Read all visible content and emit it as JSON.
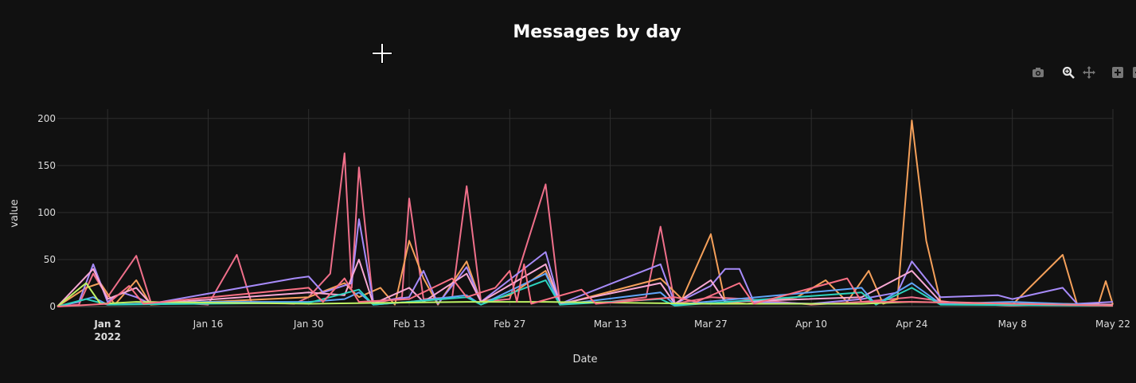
{
  "chart_data": {
    "type": "line",
    "title": "Messages by day",
    "xlabel": "Date",
    "ylabel": "value",
    "ylim": [
      0,
      200
    ],
    "y_ticks": [
      0,
      50,
      100,
      150,
      200
    ],
    "x_range": [
      "2021-12-26",
      "2022-05-22"
    ],
    "x_ticks": [
      {
        "date": "2022-01-02",
        "label": "Jan 2",
        "sublabel": "2022"
      },
      {
        "date": "2022-01-16",
        "label": "Jan 16"
      },
      {
        "date": "2022-01-30",
        "label": "Jan 30"
      },
      {
        "date": "2022-02-13",
        "label": "Feb 13"
      },
      {
        "date": "2022-02-27",
        "label": "Feb 27"
      },
      {
        "date": "2022-03-13",
        "label": "Mar 13"
      },
      {
        "date": "2022-03-27",
        "label": "Mar 27"
      },
      {
        "date": "2022-04-10",
        "label": "Apr 10"
      },
      {
        "date": "2022-04-24",
        "label": "Apr 24"
      },
      {
        "date": "2022-05-08",
        "label": "May 8"
      },
      {
        "date": "2022-05-22",
        "label": "May 22"
      }
    ],
    "grid": true,
    "legend": "none",
    "series": [
      {
        "color": "#ef6f8a",
        "points": [
          [
            "2021-12-26",
            0
          ],
          [
            "2021-12-29",
            2
          ],
          [
            "2021-12-31",
            35
          ],
          [
            "2022-01-02",
            10
          ],
          [
            "2022-01-06",
            54
          ],
          [
            "2022-01-08",
            5
          ],
          [
            "2022-01-14",
            3
          ],
          [
            "2022-01-16",
            2
          ],
          [
            "2022-01-20",
            55
          ],
          [
            "2022-01-22",
            5
          ],
          [
            "2022-01-28",
            3
          ],
          [
            "2022-01-30",
            10
          ],
          [
            "2022-02-02",
            35
          ],
          [
            "2022-02-04",
            163
          ],
          [
            "2022-02-05",
            20
          ],
          [
            "2022-02-06",
            148
          ],
          [
            "2022-02-08",
            3
          ],
          [
            "2022-02-12",
            10
          ],
          [
            "2022-02-13",
            115
          ],
          [
            "2022-02-15",
            8
          ],
          [
            "2022-02-19",
            10
          ],
          [
            "2022-02-21",
            128
          ],
          [
            "2022-02-23",
            5
          ],
          [
            "2022-02-27",
            8
          ],
          [
            "2022-03-04",
            130
          ],
          [
            "2022-03-06",
            3
          ],
          [
            "2022-03-13",
            5
          ],
          [
            "2022-03-18",
            10
          ],
          [
            "2022-03-20",
            85
          ],
          [
            "2022-03-22",
            3
          ],
          [
            "2022-03-27",
            10
          ],
          [
            "2022-04-01",
            8
          ],
          [
            "2022-04-10",
            2
          ],
          [
            "2022-04-17",
            5
          ],
          [
            "2022-04-24",
            10
          ],
          [
            "2022-05-01",
            3
          ],
          [
            "2022-05-08",
            1
          ],
          [
            "2022-05-15",
            3
          ],
          [
            "2022-05-22",
            2
          ]
        ]
      },
      {
        "color": "#f5a05a",
        "points": [
          [
            "2021-12-26",
            0
          ],
          [
            "2021-12-30",
            20
          ],
          [
            "2022-01-01",
            25
          ],
          [
            "2022-01-03",
            2
          ],
          [
            "2022-01-06",
            28
          ],
          [
            "2022-01-08",
            2
          ],
          [
            "2022-01-30",
            10
          ],
          [
            "2022-02-04",
            25
          ],
          [
            "2022-02-06",
            10
          ],
          [
            "2022-02-09",
            20
          ],
          [
            "2022-02-11",
            2
          ],
          [
            "2022-02-13",
            70
          ],
          [
            "2022-02-15",
            30
          ],
          [
            "2022-02-17",
            2
          ],
          [
            "2022-02-21",
            48
          ],
          [
            "2022-02-23",
            5
          ],
          [
            "2022-02-27",
            12
          ],
          [
            "2022-03-04",
            38
          ],
          [
            "2022-03-06",
            2
          ],
          [
            "2022-03-20",
            30
          ],
          [
            "2022-03-23",
            8
          ],
          [
            "2022-03-27",
            77
          ],
          [
            "2022-03-29",
            5
          ],
          [
            "2022-04-01",
            3
          ],
          [
            "2022-04-08",
            10
          ],
          [
            "2022-04-12",
            28
          ],
          [
            "2022-04-15",
            5
          ],
          [
            "2022-04-18",
            38
          ],
          [
            "2022-04-20",
            3
          ],
          [
            "2022-04-22",
            8
          ],
          [
            "2022-04-24",
            198
          ],
          [
            "2022-04-26",
            70
          ],
          [
            "2022-04-28",
            5
          ],
          [
            "2022-05-08",
            2
          ],
          [
            "2022-05-15",
            55
          ],
          [
            "2022-05-17",
            3
          ],
          [
            "2022-05-20",
            3
          ],
          [
            "2022-05-21",
            27
          ],
          [
            "2022-05-22",
            2
          ]
        ]
      },
      {
        "color": "#a78bfa",
        "points": [
          [
            "2021-12-26",
            0
          ],
          [
            "2021-12-29",
            5
          ],
          [
            "2021-12-31",
            45
          ],
          [
            "2022-01-02",
            5
          ],
          [
            "2022-01-04",
            15
          ],
          [
            "2022-01-06",
            10
          ],
          [
            "2022-01-08",
            3
          ],
          [
            "2022-01-28",
            30
          ],
          [
            "2022-01-30",
            32
          ],
          [
            "2022-02-01",
            15
          ],
          [
            "2022-02-05",
            25
          ],
          [
            "2022-02-06",
            93
          ],
          [
            "2022-02-08",
            5
          ],
          [
            "2022-02-13",
            10
          ],
          [
            "2022-02-15",
            38
          ],
          [
            "2022-02-17",
            3
          ],
          [
            "2022-02-21",
            42
          ],
          [
            "2022-02-23",
            5
          ],
          [
            "2022-03-04",
            58
          ],
          [
            "2022-03-06",
            3
          ],
          [
            "2022-03-20",
            45
          ],
          [
            "2022-03-22",
            3
          ],
          [
            "2022-03-27",
            22
          ],
          [
            "2022-03-29",
            40
          ],
          [
            "2022-03-31",
            40
          ],
          [
            "2022-04-02",
            5
          ],
          [
            "2022-04-10",
            3
          ],
          [
            "2022-04-17",
            8
          ],
          [
            "2022-04-22",
            15
          ],
          [
            "2022-04-24",
            48
          ],
          [
            "2022-04-28",
            10
          ],
          [
            "2022-05-06",
            12
          ],
          [
            "2022-05-08",
            8
          ],
          [
            "2022-05-15",
            20
          ],
          [
            "2022-05-17",
            3
          ],
          [
            "2022-05-22",
            5
          ]
        ]
      },
      {
        "color": "#f9a8d4",
        "points": [
          [
            "2021-12-26",
            0
          ],
          [
            "2021-12-31",
            40
          ],
          [
            "2022-01-02",
            8
          ],
          [
            "2022-01-06",
            20
          ],
          [
            "2022-01-08",
            3
          ],
          [
            "2022-01-30",
            15
          ],
          [
            "2022-02-04",
            12
          ],
          [
            "2022-02-06",
            50
          ],
          [
            "2022-02-08",
            3
          ],
          [
            "2022-02-13",
            20
          ],
          [
            "2022-02-15",
            5
          ],
          [
            "2022-02-21",
            35
          ],
          [
            "2022-02-23",
            5
          ],
          [
            "2022-03-04",
            45
          ],
          [
            "2022-03-06",
            3
          ],
          [
            "2022-03-20",
            25
          ],
          [
            "2022-03-22",
            3
          ],
          [
            "2022-03-27",
            28
          ],
          [
            "2022-03-29",
            5
          ],
          [
            "2022-04-17",
            10
          ],
          [
            "2022-04-24",
            38
          ],
          [
            "2022-04-28",
            5
          ],
          [
            "2022-05-08",
            3
          ],
          [
            "2022-05-22",
            2
          ]
        ]
      },
      {
        "color": "#60a5fa",
        "points": [
          [
            "2021-12-26",
            0
          ],
          [
            "2021-12-31",
            10
          ],
          [
            "2022-01-02",
            2
          ],
          [
            "2022-01-16",
            5
          ],
          [
            "2022-01-30",
            5
          ],
          [
            "2022-02-04",
            8
          ],
          [
            "2022-02-06",
            15
          ],
          [
            "2022-02-08",
            2
          ],
          [
            "2022-02-13",
            5
          ],
          [
            "2022-02-21",
            12
          ],
          [
            "2022-02-23",
            2
          ],
          [
            "2022-03-04",
            35
          ],
          [
            "2022-03-06",
            2
          ],
          [
            "2022-03-20",
            15
          ],
          [
            "2022-03-22",
            2
          ],
          [
            "2022-04-17",
            20
          ],
          [
            "2022-04-19",
            2
          ],
          [
            "2022-04-24",
            25
          ],
          [
            "2022-04-28",
            3
          ],
          [
            "2022-05-08",
            5
          ],
          [
            "2022-05-22",
            1
          ]
        ]
      },
      {
        "color": "#2dd4bf",
        "points": [
          [
            "2021-12-26",
            0
          ],
          [
            "2021-12-30",
            8
          ],
          [
            "2022-01-02",
            2
          ],
          [
            "2022-01-30",
            4
          ],
          [
            "2022-02-06",
            18
          ],
          [
            "2022-02-08",
            2
          ],
          [
            "2022-02-21",
            10
          ],
          [
            "2022-02-23",
            2
          ],
          [
            "2022-03-04",
            28
          ],
          [
            "2022-03-06",
            2
          ],
          [
            "2022-03-20",
            8
          ],
          [
            "2022-03-22",
            1
          ],
          [
            "2022-04-17",
            15
          ],
          [
            "2022-04-19",
            2
          ],
          [
            "2022-04-24",
            20
          ],
          [
            "2022-04-28",
            2
          ],
          [
            "2022-05-22",
            1
          ]
        ]
      },
      {
        "color": "#bef264",
        "points": [
          [
            "2021-12-26",
            0
          ],
          [
            "2021-12-30",
            25
          ],
          [
            "2022-01-01",
            3
          ],
          [
            "2022-01-06",
            5
          ],
          [
            "2022-01-30",
            3
          ],
          [
            "2022-02-21",
            5
          ],
          [
            "2022-03-04",
            5
          ],
          [
            "2022-03-27",
            3
          ],
          [
            "2022-04-17",
            3
          ],
          [
            "2022-04-24",
            5
          ],
          [
            "2022-05-22",
            1
          ]
        ]
      },
      {
        "color": "#fb7185",
        "points": [
          [
            "2021-12-26",
            0
          ],
          [
            "2022-01-02",
            3
          ],
          [
            "2022-01-05",
            22
          ],
          [
            "2022-01-07",
            3
          ],
          [
            "2022-01-30",
            20
          ],
          [
            "2022-02-01",
            5
          ],
          [
            "2022-02-04",
            30
          ],
          [
            "2022-02-06",
            5
          ],
          [
            "2022-02-13",
            8
          ],
          [
            "2022-02-19",
            30
          ],
          [
            "2022-02-21",
            10
          ],
          [
            "2022-02-25",
            20
          ],
          [
            "2022-02-27",
            38
          ],
          [
            "2022-02-28",
            5
          ],
          [
            "2022-03-01",
            45
          ],
          [
            "2022-03-02",
            3
          ],
          [
            "2022-03-09",
            18
          ],
          [
            "2022-03-11",
            3
          ],
          [
            "2022-03-22",
            10
          ],
          [
            "2022-03-25",
            5
          ],
          [
            "2022-03-31",
            25
          ],
          [
            "2022-04-02",
            3
          ],
          [
            "2022-04-15",
            30
          ],
          [
            "2022-04-17",
            5
          ],
          [
            "2022-04-24",
            5
          ],
          [
            "2022-05-22",
            1
          ]
        ]
      }
    ]
  },
  "modebar": [
    {
      "icon": "camera-icon"
    },
    {
      "icon": "zoom-icon"
    },
    {
      "icon": "pan-icon"
    },
    {
      "icon": "zoom-in-icon"
    },
    {
      "icon": "zoom-out-icon"
    }
  ]
}
